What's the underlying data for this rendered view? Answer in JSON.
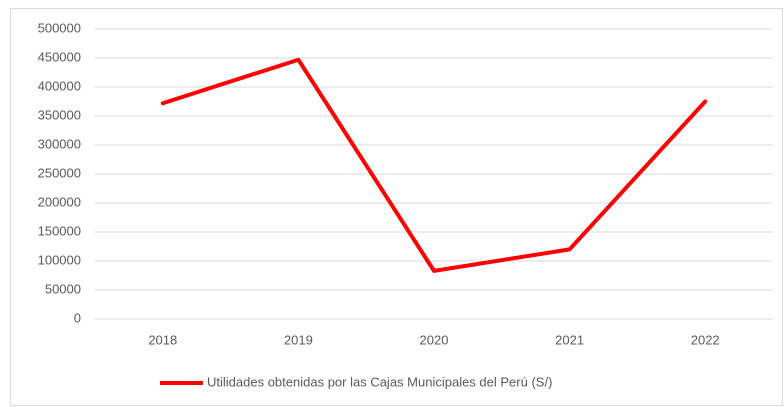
{
  "chart_data": {
    "type": "line",
    "categories": [
      "2018",
      "2019",
      "2020",
      "2021",
      "2022"
    ],
    "series": [
      {
        "name": "Utilidades obtenidas por las Cajas Municipales del Perú (S/)",
        "color": "#ff0000",
        "values": [
          372000,
          447000,
          83000,
          120000,
          375000
        ]
      }
    ],
    "ylim": [
      0,
      500000
    ],
    "yticks": [
      0,
      50000,
      100000,
      150000,
      200000,
      250000,
      300000,
      350000,
      400000,
      450000,
      500000
    ],
    "grid": true,
    "legend": "bottom"
  }
}
